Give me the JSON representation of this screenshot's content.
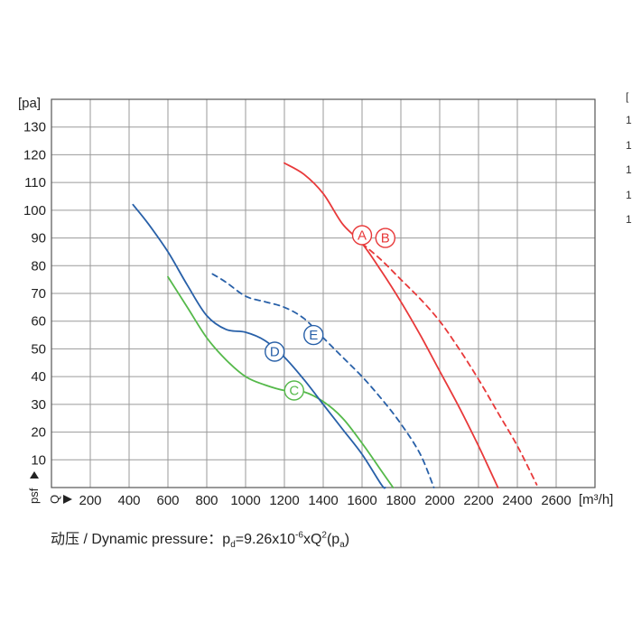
{
  "chart_data": {
    "type": "line",
    "y_unit_label": "[pa]",
    "x_unit_label": "[m³/h]",
    "y_axis_symbol": "psf",
    "x_axis_symbol": "Q",
    "xlim": [
      0,
      2800
    ],
    "ylim": [
      0,
      140
    ],
    "x_ticks": [
      200,
      400,
      600,
      800,
      1000,
      1200,
      1400,
      1600,
      1800,
      2000,
      2200,
      2400,
      2600
    ],
    "y_ticks": [
      10,
      20,
      30,
      40,
      50,
      60,
      70,
      80,
      90,
      100,
      110,
      120,
      130
    ],
    "grid": true,
    "series": [
      {
        "name": "A",
        "color": "#e8393a",
        "dashed": false,
        "points": [
          [
            1200,
            117
          ],
          [
            1300,
            113
          ],
          [
            1400,
            106
          ],
          [
            1500,
            95
          ],
          [
            1600,
            88
          ],
          [
            1700,
            78
          ],
          [
            1800,
            67
          ],
          [
            1900,
            55
          ],
          [
            2000,
            42
          ],
          [
            2100,
            29
          ],
          [
            2200,
            15
          ],
          [
            2300,
            0
          ]
        ],
        "label_at": [
          1600,
          91
        ]
      },
      {
        "name": "B",
        "color": "#e8393a",
        "dashed": true,
        "points": [
          [
            1600,
            88
          ],
          [
            1700,
            82
          ],
          [
            1800,
            75
          ],
          [
            1900,
            68
          ],
          [
            2000,
            60
          ],
          [
            2100,
            50
          ],
          [
            2200,
            39
          ],
          [
            2300,
            27
          ],
          [
            2400,
            15
          ],
          [
            2500,
            1
          ]
        ],
        "label_at": [
          1720,
          90
        ]
      },
      {
        "name": "C",
        "color": "#55b94a",
        "dashed": false,
        "points": [
          [
            600,
            76
          ],
          [
            700,
            65
          ],
          [
            800,
            54
          ],
          [
            900,
            46
          ],
          [
            1000,
            40
          ],
          [
            1100,
            37
          ],
          [
            1200,
            35
          ],
          [
            1300,
            34.5
          ],
          [
            1400,
            31
          ],
          [
            1500,
            25
          ],
          [
            1600,
            16
          ],
          [
            1700,
            6
          ],
          [
            1760,
            0
          ]
        ],
        "label_at": [
          1250,
          35
        ]
      },
      {
        "name": "D",
        "color": "#2860a8",
        "dashed": false,
        "points": [
          [
            420,
            102
          ],
          [
            500,
            95
          ],
          [
            600,
            85
          ],
          [
            700,
            73
          ],
          [
            800,
            62
          ],
          [
            900,
            57
          ],
          [
            1000,
            56
          ],
          [
            1100,
            53
          ],
          [
            1200,
            47
          ],
          [
            1300,
            39
          ],
          [
            1400,
            30
          ],
          [
            1500,
            21
          ],
          [
            1600,
            12
          ],
          [
            1700,
            1
          ],
          [
            1720,
            0
          ]
        ],
        "label_at": [
          1150,
          49
        ]
      },
      {
        "name": "E",
        "color": "#2860a8",
        "dashed": true,
        "points": [
          [
            830,
            77
          ],
          [
            900,
            74
          ],
          [
            1000,
            69
          ],
          [
            1100,
            67
          ],
          [
            1200,
            65
          ],
          [
            1300,
            61
          ],
          [
            1400,
            54
          ],
          [
            1500,
            47
          ],
          [
            1600,
            40
          ],
          [
            1700,
            32
          ],
          [
            1800,
            23
          ],
          [
            1900,
            12
          ],
          [
            1970,
            0
          ]
        ],
        "label_at": [
          1350,
          55
        ]
      }
    ]
  },
  "footer": {
    "prefix": "动压 / Dynamic pressure：",
    "p": "p",
    "d_sub": "d",
    "formula_mid": "=9.26x10",
    "exp": "-6",
    "formula_tail": "xQ",
    "sq": "2",
    "paren_open": "(p",
    "a_sub": "a",
    "paren_close": ")"
  },
  "edge_marks": [
    "[",
    "1",
    "1",
    "1",
    "1",
    "1"
  ]
}
